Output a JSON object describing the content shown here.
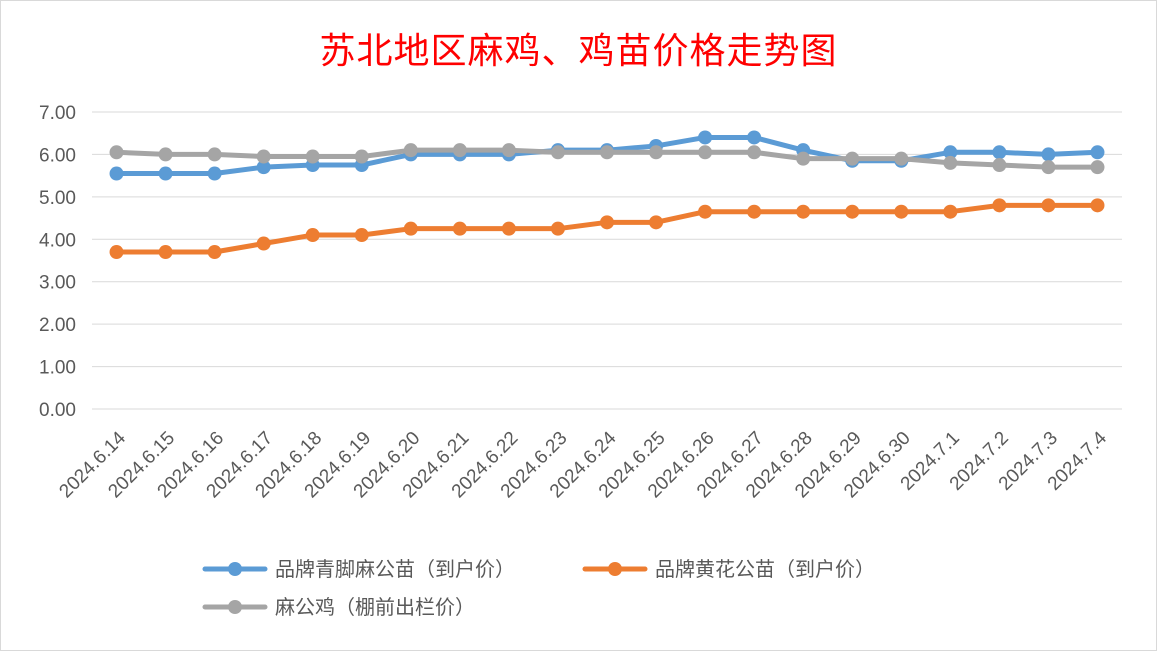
{
  "chart_data": {
    "type": "line",
    "title": "苏北地区麻鸡、鸡苗价格走势图",
    "xlabel": "",
    "ylabel": "",
    "ylim": [
      0,
      7
    ],
    "y_ticks": [
      "0.00",
      "1.00",
      "2.00",
      "3.00",
      "4.00",
      "5.00",
      "6.00",
      "7.00"
    ],
    "grid": true,
    "legend_position": "bottom",
    "categories": [
      "2024.6.14",
      "2024.6.15",
      "2024.6.16",
      "2024.6.17",
      "2024.6.18",
      "2024.6.19",
      "2024.6.20",
      "2024.6.21",
      "2024.6.22",
      "2024.6.23",
      "2024.6.24",
      "2024.6.25",
      "2024.6.26",
      "2024.6.27",
      "2024.6.28",
      "2024.6.29",
      "2024.6.30",
      "2024.7.1",
      "2024.7.2",
      "2024.7.3",
      "2024.7.4"
    ],
    "series": [
      {
        "name": "品牌青脚麻公苗（到户价）",
        "color": "#5b9bd5",
        "values": [
          5.55,
          5.55,
          5.55,
          5.7,
          5.75,
          5.75,
          6.0,
          6.0,
          6.0,
          6.1,
          6.1,
          6.2,
          6.4,
          6.4,
          6.1,
          5.85,
          5.85,
          6.05,
          6.05,
          6.0,
          6.05
        ]
      },
      {
        "name": "品牌黄花公苗（到户价）",
        "color": "#ed7d31",
        "values": [
          3.7,
          3.7,
          3.7,
          3.9,
          4.1,
          4.1,
          4.25,
          4.25,
          4.25,
          4.25,
          4.4,
          4.4,
          4.65,
          4.65,
          4.65,
          4.65,
          4.65,
          4.65,
          4.8,
          4.8,
          4.8
        ]
      },
      {
        "name": "麻公鸡（棚前出栏价）",
        "color": "#a5a5a5",
        "values": [
          6.05,
          6.0,
          6.0,
          5.95,
          5.95,
          5.95,
          6.1,
          6.1,
          6.1,
          6.05,
          6.05,
          6.05,
          6.05,
          6.05,
          5.9,
          5.9,
          5.9,
          5.8,
          5.75,
          5.7,
          5.7
        ]
      }
    ]
  }
}
